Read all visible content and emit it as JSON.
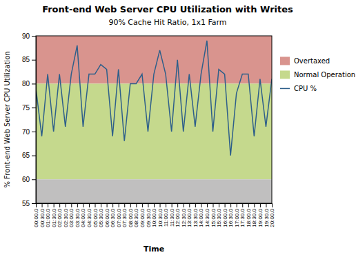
{
  "chart_data": {
    "type": "line",
    "title": "Front-end Web Server CPU Utilization with Writes",
    "subtitle": "90% Cache Hit Ratio, 1x1 Farm",
    "xlabel": "Time",
    "ylabel": "% Front-end Web Server CPU Utilization",
    "categories": [
      "00:00.0",
      "00:30.0",
      "01:00.0",
      "01:30.0",
      "02:00.0",
      "02:30.0",
      "03:00.0",
      "03:30.0",
      "04:00.0",
      "04:30.0",
      "05:00.0",
      "05:30.0",
      "06:00.0",
      "06:30.0",
      "07:00.0",
      "07:30.0",
      "08:00.0",
      "08:30.0",
      "09:00.0",
      "09:30.0",
      "10:00.0",
      "10:30.0",
      "11:00.0",
      "11:30.0",
      "12:00.0",
      "12:30.0",
      "13:00.0",
      "13:30.0",
      "14:00.0",
      "14:30.0",
      "15:00.0",
      "15:30.0",
      "16:00.0",
      "16:30.0",
      "17:00.0",
      "17:30.0",
      "18:00.0",
      "18:30.0",
      "19:00.0",
      "19:30.0",
      "20:00.0"
    ],
    "series": [
      {
        "name": "CPU %",
        "color": "#2e5f8a",
        "values": [
          79,
          69,
          82,
          70,
          82,
          71,
          82,
          88,
          71,
          82,
          82,
          84,
          83,
          69,
          83,
          68,
          80,
          80,
          82,
          70,
          82,
          87,
          82,
          70,
          85,
          70,
          82,
          71,
          82,
          89,
          70,
          83,
          82,
          65,
          78,
          82,
          82,
          69,
          81,
          71,
          81
        ]
      }
    ],
    "bands": [
      {
        "name": "Overtaxed",
        "color": "#d9948e",
        "from": 80,
        "to": 90
      },
      {
        "name": "Normal Operation",
        "color": "#c5d98d",
        "from": 60,
        "to": 80
      },
      {
        "color": "#c0bfbf",
        "from": 55,
        "to": 60
      }
    ],
    "ylim": [
      55,
      90
    ],
    "yticks": [
      55,
      60,
      65,
      70,
      75,
      80,
      85,
      90
    ],
    "grid": false,
    "legend": "right"
  }
}
